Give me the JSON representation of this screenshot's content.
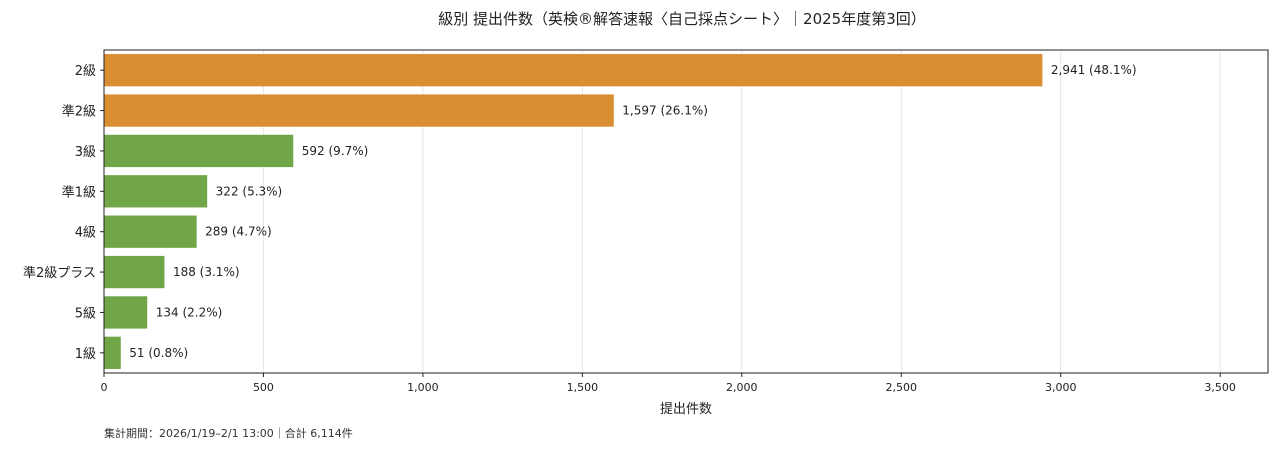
{
  "chart_data": {
    "type": "bar",
    "orientation": "horizontal",
    "title": "級別 提出件数（英検®解答速報〈自己採点シート〉｜2025年度第3回）",
    "xlabel": "提出件数",
    "ylabel": "",
    "xlim": [
      0,
      3650
    ],
    "xticks": [
      0,
      500,
      1000,
      1500,
      2000,
      2500,
      3000,
      3500
    ],
    "xtick_labels": [
      "0",
      "500",
      "1,000",
      "1,500",
      "2,000",
      "2,500",
      "3,000",
      "3,500"
    ],
    "grid": "vertical",
    "legend": "none",
    "categories": [
      "2級",
      "準2級",
      "3級",
      "準1級",
      "4級",
      "準2級プラス",
      "5級",
      "1級"
    ],
    "values": [
      2941,
      1597,
      592,
      322,
      289,
      188,
      134,
      51
    ],
    "value_labels": [
      "2,941 (48.1%)",
      "1,597 (26.1%)",
      "592 (9.7%)",
      "322 (5.3%)",
      "289 (4.7%)",
      "188 (3.1%)",
      "134 (2.2%)",
      "51 (0.8%)"
    ],
    "bar_colors": [
      "#d98e32",
      "#d98e32",
      "#70a548",
      "#70a548",
      "#70a548",
      "#70a548",
      "#70a548",
      "#70a548"
    ],
    "footnote": "集計期間：2026/1/19–2/1 13:00｜合計 6,114件"
  }
}
